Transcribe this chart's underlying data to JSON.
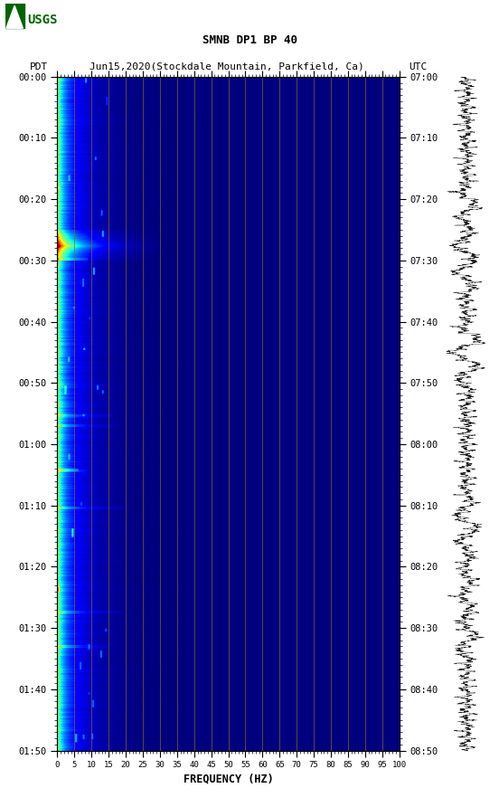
{
  "title_line1": "SMNB DP1 BP 40",
  "title_line2_pdt": "PDT",
  "title_line2_date": "Jun15,2020(Stockdale Mountain, Parkfield, Ca)",
  "title_line2_utc": "UTC",
  "xlabel": "FREQUENCY (HZ)",
  "freq_min": 0,
  "freq_max": 100,
  "freq_ticks": [
    0,
    5,
    10,
    15,
    20,
    25,
    30,
    35,
    40,
    45,
    50,
    55,
    60,
    65,
    70,
    75,
    80,
    85,
    90,
    95,
    100
  ],
  "time_ticks_left": [
    "00:00",
    "00:10",
    "00:20",
    "00:30",
    "00:40",
    "00:50",
    "01:00",
    "01:10",
    "01:20",
    "01:30",
    "01:40",
    "01:50"
  ],
  "time_ticks_right": [
    "07:00",
    "07:10",
    "07:20",
    "07:30",
    "07:40",
    "07:50",
    "08:00",
    "08:10",
    "08:20",
    "08:30",
    "08:40",
    "08:50"
  ],
  "background_color": "#ffffff",
  "grid_color": "#8B6914",
  "colormap": "jet",
  "n_time": 1100,
  "n_freq": 1000,
  "usgs_logo_color": "#006400",
  "waveform_color": "#000000"
}
